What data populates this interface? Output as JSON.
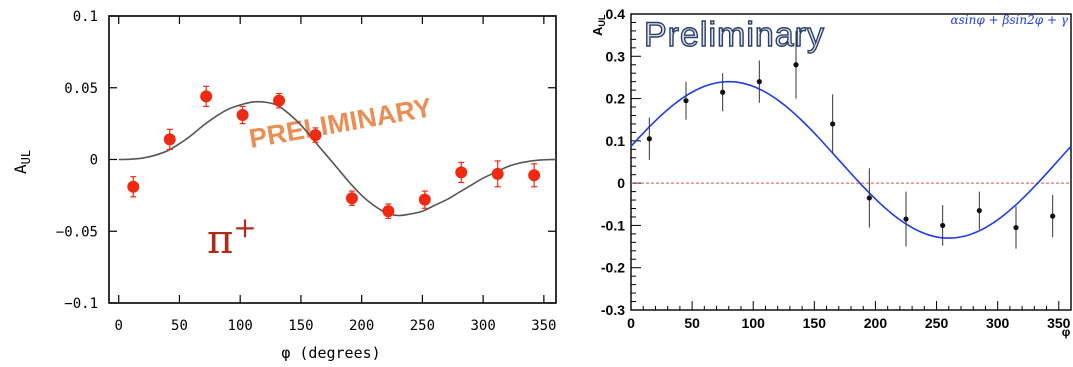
{
  "chart_data": [
    {
      "type": "scatter",
      "xlabel": "φ (degrees)",
      "ylabel": "A",
      "ylabel_subscript": "UL",
      "xlim": [
        -8,
        360
      ],
      "ylim": [
        -0.1,
        0.1
      ],
      "xticks": [
        0,
        50,
        100,
        150,
        200,
        250,
        300,
        350
      ],
      "yticks": [
        0.1,
        0.05,
        0,
        -0.05,
        -0.1
      ],
      "ytick_labels": [
        "0.1",
        "0.05",
        "0",
        "−0.05",
        "−0.1"
      ],
      "grid": false,
      "watermark": "PRELIMINARY",
      "annotation": {
        "base": "π",
        "sup": "+"
      },
      "points": [
        {
          "x": 12,
          "y": -0.019,
          "err": 0.007
        },
        {
          "x": 42,
          "y": 0.014,
          "err": 0.007
        },
        {
          "x": 72,
          "y": 0.044,
          "err": 0.007
        },
        {
          "x": 102,
          "y": 0.031,
          "err": 0.006
        },
        {
          "x": 132,
          "y": 0.041,
          "err": 0.005
        },
        {
          "x": 162,
          "y": 0.017,
          "err": 0.005
        },
        {
          "x": 192,
          "y": -0.027,
          "err": 0.005
        },
        {
          "x": 222,
          "y": -0.036,
          "err": 0.005
        },
        {
          "x": 252,
          "y": -0.028,
          "err": 0.006
        },
        {
          "x": 282,
          "y": -0.009,
          "err": 0.007
        },
        {
          "x": 312,
          "y": -0.01,
          "err": 0.009
        },
        {
          "x": 342,
          "y": -0.011,
          "err": 0.008
        }
      ],
      "fit_curve": {
        "x": [
          0,
          10,
          20,
          30,
          40,
          50,
          60,
          70,
          80,
          90,
          100,
          110,
          120,
          130,
          140,
          150,
          160,
          170,
          180,
          190,
          200,
          210,
          220,
          230,
          240,
          250,
          260,
          270,
          280,
          290,
          300,
          310,
          320,
          330,
          340,
          350,
          360
        ],
        "y": [
          0,
          0.0002,
          0.001,
          0.003,
          0.006,
          0.011,
          0.017,
          0.024,
          0.03,
          0.035,
          0.038,
          0.04,
          0.04,
          0.038,
          0.032,
          0.024,
          0.014,
          0.004,
          -0.006,
          -0.016,
          -0.025,
          -0.032,
          -0.037,
          -0.039,
          -0.038,
          -0.036,
          -0.032,
          -0.028,
          -0.023,
          -0.018,
          -0.013,
          -0.009,
          -0.005,
          -0.0025,
          -0.001,
          -0.0002,
          0
        ]
      },
      "colors": {
        "points": "#ee2b12",
        "curve": "#555555",
        "watermark": "#ea8e55",
        "annotation": "#b2291c"
      }
    },
    {
      "type": "scatter",
      "ylabel": "A",
      "ylabel_subscript": "UL",
      "xlabel": "φ",
      "xlim": [
        0,
        360
      ],
      "ylim": [
        -0.3,
        0.4
      ],
      "xticks": [
        0,
        50,
        100,
        150,
        200,
        250,
        300,
        350
      ],
      "yticks": [
        0.4,
        0.3,
        0.2,
        0.1,
        0,
        -0.1,
        -0.2,
        -0.3
      ],
      "ytick_labels": [
        "0.4",
        "0.3",
        "0.2",
        "0.1",
        "0",
        "-0.1",
        "-0.2",
        "-0.3"
      ],
      "grid": false,
      "watermark": "Preliminary",
      "legend": "αsinφ + βsin2φ + γ",
      "points": [
        {
          "x": 15,
          "y": 0.105,
          "err": 0.05
        },
        {
          "x": 45,
          "y": 0.195,
          "err": 0.045
        },
        {
          "x": 75,
          "y": 0.215,
          "err": 0.045
        },
        {
          "x": 105,
          "y": 0.24,
          "err": 0.05
        },
        {
          "x": 135,
          "y": 0.28,
          "err": 0.08
        },
        {
          "x": 165,
          "y": 0.14,
          "err": 0.07
        },
        {
          "x": 195,
          "y": -0.035,
          "err": 0.07
        },
        {
          "x": 225,
          "y": -0.085,
          "err": 0.065
        },
        {
          "x": 255,
          "y": -0.1,
          "err": 0.048
        },
        {
          "x": 285,
          "y": -0.065,
          "err": 0.045
        },
        {
          "x": 315,
          "y": -0.105,
          "err": 0.05
        },
        {
          "x": 345,
          "y": -0.078,
          "err": 0.05
        }
      ],
      "fit_params": {
        "alpha": 0.185,
        "beta": 0.0,
        "gamma": 0.055,
        "phase_deg": 10
      },
      "colors": {
        "points": "#111111",
        "curve": "#1f3ce6",
        "zero_line": "#e0524f",
        "legend": "#1f3ce6",
        "watermark_fill": "#e0e5f2",
        "watermark_stroke": "#2c3f66"
      }
    }
  ]
}
